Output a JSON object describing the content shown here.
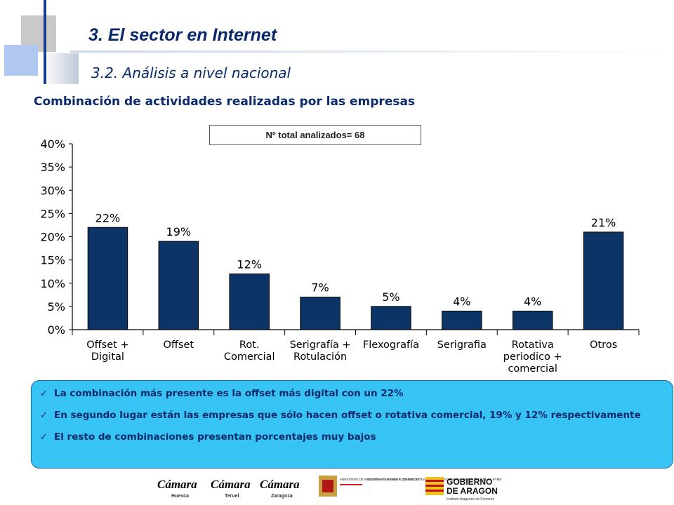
{
  "header": {
    "title": "3. El sector en Internet",
    "subtitle": "3.2. Análisis a nivel nacional"
  },
  "heading": "Combinación de actividades realizadas por las empresas",
  "chart_data": {
    "type": "bar",
    "annotation": "Nº total analizados= 68",
    "categories": [
      "Offset +\nDigital",
      "Offset",
      "Rot.\nComercial",
      "Serigrafía +\nRotulación",
      "Flexografía",
      "Serigrafia",
      "Rotativa\nperiodico +\ncomercial",
      "Otros"
    ],
    "values": [
      22,
      19,
      12,
      7,
      5,
      4,
      4,
      21
    ],
    "data_labels": [
      "22%",
      "19%",
      "12%",
      "7%",
      "5%",
      "4%",
      "4%",
      "21%"
    ],
    "y_ticks": [
      "0%",
      "5%",
      "10%",
      "15%",
      "20%",
      "25%",
      "30%",
      "35%",
      "40%"
    ],
    "ylim": [
      0,
      40
    ],
    "grid": false,
    "bar_color": "#0d3466"
  },
  "notes": [
    "La combinación más presente es la offset más digital con un 22%",
    "En segundo lugar están las empresas que sólo hacen offset o rotativa comercial, 19% y 12% respectivamente",
    "El resto de combinaciones presentan porcentajes muy bajos"
  ],
  "footer": {
    "logos": [
      {
        "name": "Cámara",
        "sub": "Huesca"
      },
      {
        "name": "Cámara",
        "sub": "Teruel"
      },
      {
        "name": "Cámara",
        "sub": "Zaragoza"
      }
    ],
    "ministry": {
      "left": "MINISTERIO DE INDUSTRIA, TURISMO Y COMERCIO",
      "right": "SECRETARÍA GENERAL DE INDUSTRIA · DIRECCIÓN GENERAL DE POLÍTICA DE LA PYME"
    },
    "gobierno": {
      "line1": "GOBIERNO",
      "line2": "DE ARAGON",
      "line3": "Instituto Aragonés de Fomento"
    }
  }
}
